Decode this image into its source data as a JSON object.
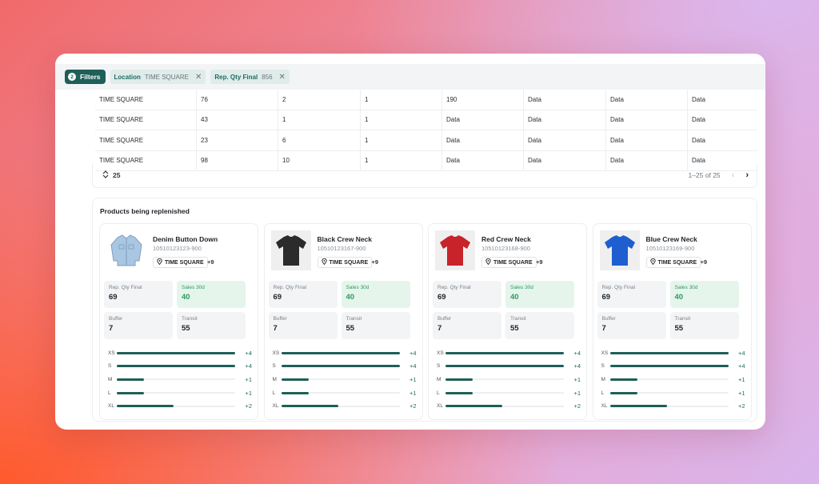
{
  "filterbar": {
    "filters_label": "Filters",
    "filters_count": "2",
    "chips": [
      {
        "key": "Location",
        "value": "TIME SQUARE"
      },
      {
        "key": "Rep. Qty Final",
        "value": "856"
      }
    ]
  },
  "table": {
    "rows": [
      [
        "TIME SQUARE",
        "76",
        "2",
        "1",
        "190",
        "Data",
        "Data",
        "Data"
      ],
      [
        "TIME SQUARE",
        "43",
        "1",
        "1",
        "Data",
        "Data",
        "Data",
        "Data"
      ],
      [
        "TIME SQUARE",
        "23",
        "6",
        "1",
        "Data",
        "Data",
        "Data",
        "Data"
      ],
      [
        "TIME SQUARE",
        "98",
        "10",
        "1",
        "Data",
        "Data",
        "Data",
        "Data"
      ]
    ]
  },
  "pagination": {
    "page_size": "25",
    "range": "1–25 of 25"
  },
  "products": {
    "title": "Products being replenished",
    "labels": {
      "rep_qty": "Rep. Qty Final",
      "sales": "Sales 30d",
      "buffer": "Buffer",
      "transit": "Transit"
    },
    "items": [
      {
        "name": "Denim Button Down",
        "sku": "10510123123-900",
        "location": "TIME SQUARE",
        "more": "+9",
        "image_icon": "denim-jacket-icon",
        "image_color": "#a9c6e2",
        "rep_qty": "69",
        "sales": "40",
        "buffer": "7",
        "transit": "55",
        "sizes": [
          {
            "size": "XS",
            "delta": "+4",
            "level": 1.0
          },
          {
            "size": "S",
            "delta": "+4",
            "level": 1.0
          },
          {
            "size": "M",
            "delta": "+1",
            "level": 0.23
          },
          {
            "size": "L",
            "delta": "+1",
            "level": 0.23
          },
          {
            "size": "XL",
            "delta": "+2",
            "level": 0.48
          }
        ]
      },
      {
        "name": "Black Crew Neck",
        "sku": "10510123167-900",
        "location": "TIME SQUARE",
        "more": "+9",
        "image_icon": "black-tshirt-icon",
        "image_color": "#2b2b2b",
        "rep_qty": "69",
        "sales": "40",
        "buffer": "7",
        "transit": "55",
        "sizes": [
          {
            "size": "XS",
            "delta": "+4",
            "level": 1.0
          },
          {
            "size": "S",
            "delta": "+4",
            "level": 1.0
          },
          {
            "size": "M",
            "delta": "+1",
            "level": 0.23
          },
          {
            "size": "L",
            "delta": "+1",
            "level": 0.23
          },
          {
            "size": "XL",
            "delta": "+2",
            "level": 0.48
          }
        ]
      },
      {
        "name": "Red Crew Neck",
        "sku": "10510123168-900",
        "location": "TIME SQUARE",
        "more": "+9",
        "image_icon": "red-tshirt-icon",
        "image_color": "#c8232b",
        "rep_qty": "69",
        "sales": "40",
        "buffer": "7",
        "transit": "55",
        "sizes": [
          {
            "size": "XS",
            "delta": "+4",
            "level": 1.0
          },
          {
            "size": "S",
            "delta": "+4",
            "level": 1.0
          },
          {
            "size": "M",
            "delta": "+1",
            "level": 0.23
          },
          {
            "size": "L",
            "delta": "+1",
            "level": 0.23
          },
          {
            "size": "XL",
            "delta": "+2",
            "level": 0.48
          }
        ]
      },
      {
        "name": "Blue Crew Neck",
        "sku": "10510123169-900",
        "location": "TIME SQUARE",
        "more": "+9",
        "image_icon": "blue-tshirt-icon",
        "image_color": "#1f5ed0",
        "rep_qty": "69",
        "sales": "40",
        "buffer": "7",
        "transit": "55",
        "sizes": [
          {
            "size": "XS",
            "delta": "+4",
            "level": 1.0
          },
          {
            "size": "S",
            "delta": "+4",
            "level": 1.0
          },
          {
            "size": "M",
            "delta": "+1",
            "level": 0.23
          },
          {
            "size": "L",
            "delta": "+1",
            "level": 0.23
          },
          {
            "size": "XL",
            "delta": "+2",
            "level": 0.48
          }
        ]
      }
    ]
  },
  "colors": {
    "accent": "#1e5f58",
    "sales_green": "#2e9a5e"
  }
}
